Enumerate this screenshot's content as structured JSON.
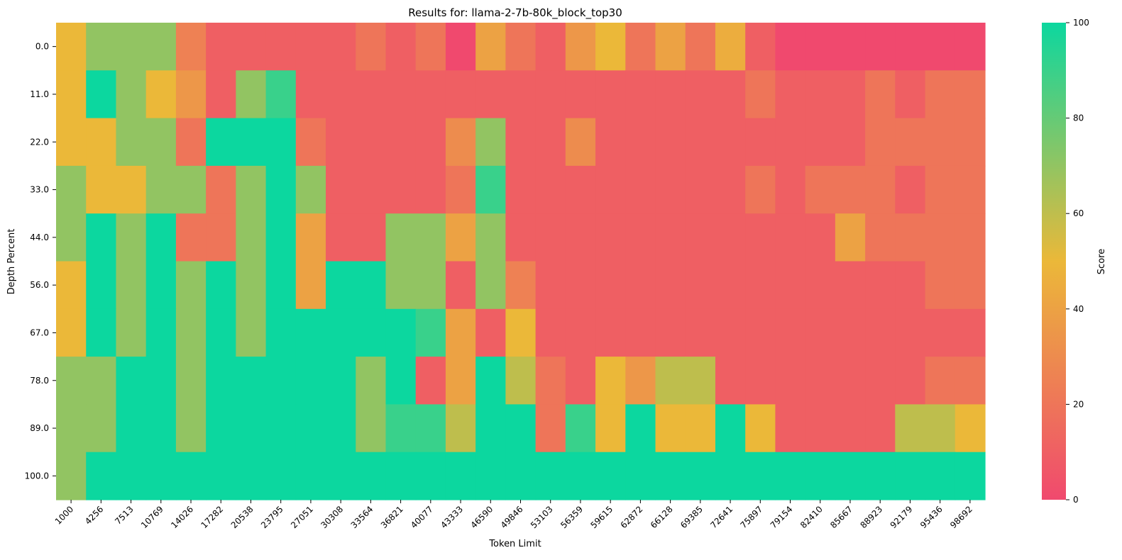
{
  "chart_data": {
    "type": "heatmap",
    "title": "Results for: llama-2-7b-80k_block_top30",
    "xlabel": "Token Limit",
    "ylabel": "Depth Percent",
    "x": [
      "1000",
      "4256",
      "7513",
      "10769",
      "14026",
      "17282",
      "20538",
      "23795",
      "27051",
      "30308",
      "33564",
      "36821",
      "40077",
      "43333",
      "46590",
      "49846",
      "53103",
      "56359",
      "59615",
      "62872",
      "66128",
      "69385",
      "72641",
      "75897",
      "79154",
      "82410",
      "85667",
      "88923",
      "92179",
      "95436",
      "98692"
    ],
    "y": [
      "0.0",
      "11.0",
      "22.0",
      "33.0",
      "44.0",
      "56.0",
      "67.0",
      "78.0",
      "89.0",
      "100.0"
    ],
    "values": [
      [
        50,
        70,
        70,
        70,
        25,
        10,
        10,
        10,
        10,
        10,
        20,
        10,
        20,
        0,
        40,
        20,
        10,
        35,
        50,
        20,
        40,
        20,
        45,
        10,
        0,
        0,
        0,
        0,
        0,
        0,
        0
      ],
      [
        50,
        100,
        70,
        50,
        35,
        10,
        70,
        90,
        10,
        10,
        10,
        10,
        10,
        10,
        10,
        10,
        10,
        10,
        10,
        10,
        10,
        10,
        10,
        20,
        10,
        10,
        10,
        20,
        10,
        20,
        20
      ],
      [
        50,
        50,
        70,
        70,
        20,
        100,
        100,
        100,
        20,
        10,
        10,
        10,
        10,
        30,
        70,
        10,
        10,
        30,
        10,
        10,
        10,
        10,
        10,
        10,
        10,
        10,
        10,
        20,
        20,
        20,
        20
      ],
      [
        70,
        50,
        50,
        70,
        70,
        20,
        70,
        100,
        70,
        10,
        10,
        10,
        10,
        20,
        90,
        10,
        10,
        10,
        10,
        10,
        10,
        10,
        10,
        20,
        10,
        20,
        20,
        20,
        10,
        20,
        20
      ],
      [
        70,
        100,
        70,
        100,
        20,
        20,
        70,
        100,
        40,
        10,
        10,
        70,
        70,
        40,
        70,
        10,
        10,
        10,
        10,
        10,
        10,
        10,
        10,
        10,
        10,
        10,
        40,
        20,
        20,
        20,
        20
      ],
      [
        50,
        100,
        70,
        100,
        70,
        100,
        70,
        100,
        40,
        100,
        100,
        70,
        70,
        10,
        70,
        25,
        10,
        10,
        10,
        10,
        10,
        10,
        10,
        10,
        10,
        10,
        10,
        10,
        10,
        20,
        20
      ],
      [
        50,
        100,
        70,
        100,
        70,
        100,
        70,
        100,
        100,
        100,
        100,
        100,
        90,
        40,
        10,
        50,
        10,
        10,
        10,
        10,
        10,
        10,
        10,
        10,
        10,
        10,
        10,
        10,
        10,
        10,
        10
      ],
      [
        70,
        70,
        100,
        100,
        70,
        100,
        100,
        100,
        100,
        100,
        70,
        100,
        10,
        40,
        100,
        60,
        20,
        10,
        50,
        35,
        60,
        60,
        10,
        10,
        10,
        10,
        10,
        10,
        10,
        20,
        20
      ],
      [
        70,
        70,
        100,
        100,
        70,
        100,
        100,
        100,
        100,
        100,
        70,
        90,
        90,
        60,
        100,
        100,
        20,
        90,
        50,
        100,
        50,
        50,
        100,
        50,
        10,
        10,
        10,
        10,
        60,
        60,
        50
      ],
      [
        70,
        100,
        100,
        100,
        100,
        100,
        100,
        100,
        100,
        100,
        100,
        100,
        100,
        100,
        100,
        100,
        100,
        100,
        100,
        100,
        100,
        100,
        100,
        100,
        100,
        100,
        100,
        100,
        100,
        100,
        100
      ]
    ],
    "vmin": 0,
    "vmax": 100,
    "colorbar": {
      "label": "Score",
      "ticks": [
        0,
        20,
        40,
        60,
        80,
        100
      ]
    },
    "colorscale": [
      "#f0496e",
      "#ebb839",
      "#0cd79f"
    ]
  }
}
